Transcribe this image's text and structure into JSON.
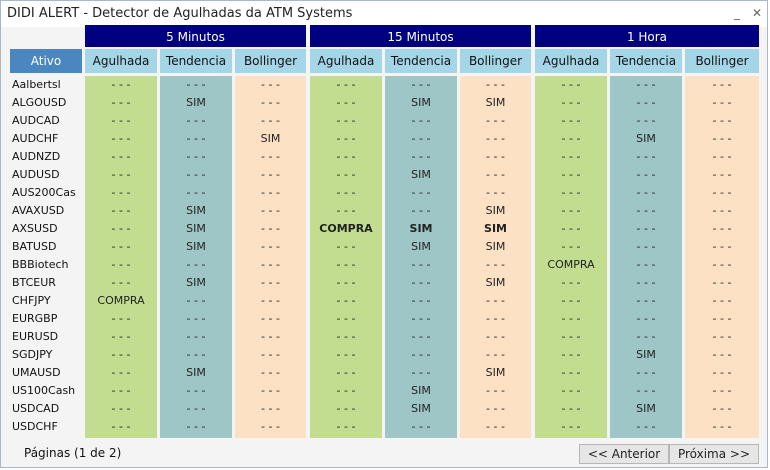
{
  "window": {
    "title": "DIDI ALERT - Detector de Agulhadas da ATM Systems",
    "minimize_glyph": "_",
    "close_glyph": "✕"
  },
  "header": {
    "ativo_label": "Ativo",
    "groups": [
      "5 Minutos",
      "15 Minutos",
      "1 Hora"
    ],
    "subcolumns": [
      "Agulhada",
      "Tendencia",
      "Bollinger"
    ]
  },
  "assets": [
    "Aalbertsl",
    "ALGOUSD",
    "AUDCAD",
    "AUDCHF",
    "AUDNZD",
    "AUDUSD",
    "AUS200Cas",
    "AVAXUSD",
    "AXSUSD",
    "BATUSD",
    "BBBiotech",
    "BTCEUR",
    "CHFJPY",
    "EURGBP",
    "EURUSD",
    "SGDJPY",
    "UMAUSD",
    "US100Cash",
    "USDCAD",
    "USDCHF"
  ],
  "columns": [
    [
      "- - -",
      "- - -",
      "- - -",
      "- - -",
      "- - -",
      "- - -",
      "- - -",
      "- - -",
      "- - -",
      "- - -",
      "- - -",
      "- - -",
      "COMPRA",
      "- - -",
      "- - -",
      "- - -",
      "- - -",
      "- - -",
      "- - -",
      "- - -"
    ],
    [
      "- - -",
      "SIM",
      "- - -",
      "- - -",
      "- - -",
      "- - -",
      "- - -",
      "SIM",
      "SIM",
      "SIM",
      "- - -",
      "SIM",
      "- - -",
      "- - -",
      "- - -",
      "- - -",
      "SIM",
      "- - -",
      "- - -",
      "- - -"
    ],
    [
      "- - -",
      "- - -",
      "- - -",
      "SIM",
      "- - -",
      "- - -",
      "- - -",
      "- - -",
      "- - -",
      "- - -",
      "- - -",
      "- - -",
      "- - -",
      "- - -",
      "- - -",
      "- - -",
      "- - -",
      "- - -",
      "- - -",
      "- - -"
    ],
    [
      "- - -",
      "- - -",
      "- - -",
      "- - -",
      "- - -",
      "- - -",
      "- - -",
      "- - -",
      "COMPRA",
      "- - -",
      "- - -",
      "- - -",
      "- - -",
      "- - -",
      "- - -",
      "- - -",
      "- - -",
      "- - -",
      "- - -",
      "- - -"
    ],
    [
      "- - -",
      "SIM",
      "- - -",
      "- - -",
      "- - -",
      "SIM",
      "- - -",
      "- - -",
      "SIM",
      "SIM",
      "- - -",
      "- - -",
      "- - -",
      "- - -",
      "- - -",
      "- - -",
      "- - -",
      "SIM",
      "SIM",
      "- - -"
    ],
    [
      "- - -",
      "SIM",
      "- - -",
      "- - -",
      "- - -",
      "- - -",
      "- - -",
      "SIM",
      "SIM",
      "SIM",
      "- - -",
      "SIM",
      "- - -",
      "- - -",
      "- - -",
      "- - -",
      "SIM",
      "- - -",
      "- - -",
      "- - -"
    ],
    [
      "- - -",
      "- - -",
      "- - -",
      "- - -",
      "- - -",
      "- - -",
      "- - -",
      "- - -",
      "- - -",
      "- - -",
      "COMPRA",
      "- - -",
      "- - -",
      "- - -",
      "- - -",
      "- - -",
      "- - -",
      "- - -",
      "- - -",
      "- - -"
    ],
    [
      "- - -",
      "- - -",
      "- - -",
      "SIM",
      "- - -",
      "- - -",
      "- - -",
      "- - -",
      "- - -",
      "- - -",
      "- - -",
      "- - -",
      "- - -",
      "- - -",
      "- - -",
      "SIM",
      "- - -",
      "- - -",
      "SIM",
      "- - -"
    ],
    [
      "- - -",
      "- - -",
      "- - -",
      "- - -",
      "- - -",
      "- - -",
      "- - -",
      "- - -",
      "- - -",
      "- - -",
      "- - -",
      "- - -",
      "- - -",
      "- - -",
      "- - -",
      "- - -",
      "- - -",
      "- - -",
      "- - -",
      "- - -"
    ]
  ],
  "bold_rows": {
    "3": [
      8
    ],
    "4": [
      8
    ],
    "5": [
      8
    ]
  },
  "footer": {
    "pages_label": "Páginas (1 de 2)",
    "prev_label": "<< Anterior",
    "next_label": "Próxima >>"
  },
  "colors": {
    "group_header": "#000080",
    "subheader": "#a5d6e8",
    "ativo_header": "#4a86bf",
    "agulhada_col": "#c2dd8f",
    "tendencia_col": "#9ec6c6",
    "bollinger_col": "#fde1c5"
  }
}
